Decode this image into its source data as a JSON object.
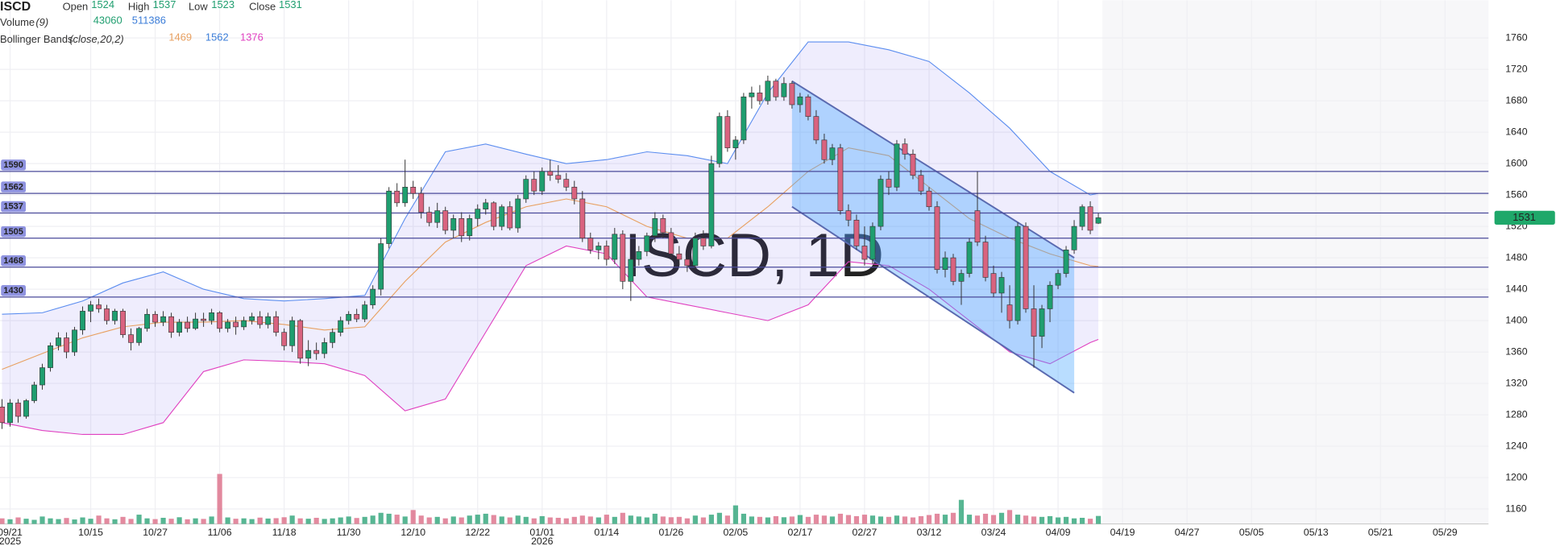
{
  "chart_data": {
    "type": "candlestick",
    "symbol": "ISCD",
    "watermark": "ISCD, 1D",
    "legend": {
      "ohlc": [
        {
          "label": "Open",
          "value": 1524
        },
        {
          "label": "High",
          "value": 1537
        },
        {
          "label": "Low",
          "value": 1523
        },
        {
          "label": "Close",
          "value": 1531
        }
      ],
      "volume": {
        "label": "Volume",
        "params": "(9)",
        "values": [
          43060,
          511386
        ]
      },
      "bollinger": {
        "label": "Bollinger Bands",
        "params": "(close,20,2)",
        "values": [
          1469,
          1562,
          1376
        ]
      }
    },
    "colors": {
      "up": "#1f9e6f",
      "down": "#d9637f",
      "upper": "#5b8def",
      "middle": "#e8a060",
      "lower": "#e040c0",
      "level": "#4a4a9a",
      "channel": "#5a6ab0"
    },
    "ohlc": [
      [
        1290,
        1300,
        1262,
        1270
      ],
      [
        1270,
        1300,
        1265,
        1295
      ],
      [
        1295,
        1300,
        1270,
        1278
      ],
      [
        1278,
        1300,
        1275,
        1298
      ],
      [
        1298,
        1322,
        1295,
        1318
      ],
      [
        1318,
        1345,
        1312,
        1340
      ],
      [
        1340,
        1372,
        1335,
        1368
      ],
      [
        1368,
        1385,
        1362,
        1378
      ],
      [
        1378,
        1385,
        1352,
        1360
      ],
      [
        1360,
        1392,
        1355,
        1388
      ],
      [
        1388,
        1418,
        1382,
        1412
      ],
      [
        1412,
        1425,
        1398,
        1420
      ],
      [
        1420,
        1428,
        1410,
        1415
      ],
      [
        1415,
        1420,
        1395,
        1400
      ],
      [
        1400,
        1415,
        1395,
        1412
      ],
      [
        1412,
        1415,
        1378,
        1382
      ],
      [
        1382,
        1390,
        1362,
        1372
      ],
      [
        1372,
        1392,
        1368,
        1390
      ],
      [
        1390,
        1415,
        1386,
        1408
      ],
      [
        1408,
        1412,
        1392,
        1398
      ],
      [
        1398,
        1412,
        1393,
        1405
      ],
      [
        1405,
        1410,
        1378,
        1385
      ],
      [
        1385,
        1402,
        1380,
        1398
      ],
      [
        1398,
        1405,
        1385,
        1390
      ],
      [
        1390,
        1410,
        1388,
        1402
      ],
      [
        1402,
        1410,
        1392,
        1400
      ],
      [
        1400,
        1415,
        1395,
        1410
      ],
      [
        1410,
        1412,
        1385,
        1390
      ],
      [
        1390,
        1402,
        1385,
        1398
      ],
      [
        1398,
        1405,
        1382,
        1392
      ],
      [
        1392,
        1405,
        1388,
        1400
      ],
      [
        1400,
        1410,
        1395,
        1405
      ],
      [
        1405,
        1412,
        1390,
        1395
      ],
      [
        1395,
        1410,
        1390,
        1405
      ],
      [
        1405,
        1412,
        1380,
        1385
      ],
      [
        1385,
        1390,
        1362,
        1368
      ],
      [
        1368,
        1405,
        1360,
        1400
      ],
      [
        1400,
        1402,
        1345,
        1352
      ],
      [
        1352,
        1375,
        1342,
        1362
      ],
      [
        1362,
        1372,
        1350,
        1358
      ],
      [
        1358,
        1378,
        1352,
        1372
      ],
      [
        1372,
        1390,
        1365,
        1385
      ],
      [
        1385,
        1405,
        1380,
        1400
      ],
      [
        1400,
        1412,
        1395,
        1408
      ],
      [
        1408,
        1415,
        1398,
        1402
      ],
      [
        1402,
        1425,
        1398,
        1420
      ],
      [
        1420,
        1445,
        1415,
        1440
      ],
      [
        1440,
        1505,
        1432,
        1498
      ],
      [
        1498,
        1570,
        1492,
        1565
      ],
      [
        1565,
        1575,
        1545,
        1550
      ],
      [
        1550,
        1605,
        1545,
        1570
      ],
      [
        1570,
        1578,
        1555,
        1562
      ],
      [
        1562,
        1570,
        1530,
        1538
      ],
      [
        1538,
        1545,
        1520,
        1525
      ],
      [
        1525,
        1550,
        1518,
        1540
      ],
      [
        1540,
        1545,
        1510,
        1515
      ],
      [
        1515,
        1535,
        1505,
        1530
      ],
      [
        1530,
        1538,
        1500,
        1508
      ],
      [
        1508,
        1535,
        1502,
        1530
      ],
      [
        1530,
        1548,
        1520,
        1542
      ],
      [
        1542,
        1555,
        1535,
        1550
      ],
      [
        1550,
        1552,
        1515,
        1520
      ],
      [
        1520,
        1548,
        1515,
        1545
      ],
      [
        1545,
        1552,
        1515,
        1518
      ],
      [
        1518,
        1560,
        1512,
        1555
      ],
      [
        1555,
        1585,
        1550,
        1580
      ],
      [
        1580,
        1590,
        1560,
        1565
      ],
      [
        1565,
        1595,
        1560,
        1590
      ],
      [
        1590,
        1605,
        1578,
        1585
      ],
      [
        1585,
        1598,
        1575,
        1580
      ],
      [
        1580,
        1588,
        1565,
        1570
      ],
      [
        1570,
        1578,
        1548,
        1555
      ],
      [
        1555,
        1565,
        1500,
        1505
      ],
      [
        1505,
        1512,
        1485,
        1490
      ],
      [
        1490,
        1500,
        1478,
        1495
      ],
      [
        1495,
        1502,
        1470,
        1478
      ],
      [
        1478,
        1518,
        1472,
        1510
      ],
      [
        1510,
        1515,
        1440,
        1450
      ],
      [
        1450,
        1482,
        1425,
        1478
      ],
      [
        1478,
        1495,
        1470,
        1488
      ],
      [
        1488,
        1512,
        1482,
        1508
      ],
      [
        1508,
        1538,
        1500,
        1530
      ],
      [
        1530,
        1535,
        1505,
        1512
      ],
      [
        1512,
        1518,
        1480,
        1485
      ],
      [
        1485,
        1495,
        1470,
        1478
      ],
      [
        1478,
        1485,
        1462,
        1470
      ],
      [
        1470,
        1512,
        1465,
        1505
      ],
      [
        1505,
        1515,
        1490,
        1495
      ],
      [
        1495,
        1610,
        1492,
        1600
      ],
      [
        1600,
        1665,
        1595,
        1660
      ],
      [
        1660,
        1668,
        1615,
        1620
      ],
      [
        1620,
        1635,
        1605,
        1630
      ],
      [
        1630,
        1690,
        1625,
        1685
      ],
      [
        1685,
        1698,
        1670,
        1690
      ],
      [
        1690,
        1700,
        1675,
        1680
      ],
      [
        1680,
        1712,
        1675,
        1705
      ],
      [
        1705,
        1708,
        1680,
        1685
      ],
      [
        1685,
        1710,
        1680,
        1702
      ],
      [
        1702,
        1705,
        1670,
        1675
      ],
      [
        1675,
        1690,
        1665,
        1685
      ],
      [
        1685,
        1688,
        1655,
        1660
      ],
      [
        1660,
        1668,
        1625,
        1630
      ],
      [
        1630,
        1638,
        1600,
        1605
      ],
      [
        1605,
        1625,
        1598,
        1620
      ],
      [
        1620,
        1625,
        1535,
        1540
      ],
      [
        1540,
        1548,
        1520,
        1528
      ],
      [
        1528,
        1535,
        1490,
        1495
      ],
      [
        1495,
        1520,
        1470,
        1478
      ],
      [
        1478,
        1525,
        1472,
        1520
      ],
      [
        1520,
        1585,
        1515,
        1580
      ],
      [
        1580,
        1590,
        1560,
        1570
      ],
      [
        1570,
        1630,
        1565,
        1625
      ],
      [
        1625,
        1632,
        1605,
        1612
      ],
      [
        1612,
        1618,
        1580,
        1585
      ],
      [
        1585,
        1592,
        1560,
        1565
      ],
      [
        1565,
        1570,
        1540,
        1545
      ],
      [
        1545,
        1552,
        1460,
        1465
      ],
      [
        1465,
        1488,
        1455,
        1480
      ],
      [
        1480,
        1485,
        1445,
        1450
      ],
      [
        1450,
        1465,
        1420,
        1460
      ],
      [
        1460,
        1505,
        1455,
        1500
      ],
      [
        1540,
        1590,
        1495,
        1500
      ],
      [
        1500,
        1508,
        1450,
        1455
      ],
      [
        1460,
        1470,
        1430,
        1435
      ],
      [
        1435,
        1462,
        1410,
        1455
      ],
      [
        1420,
        1445,
        1390,
        1400
      ],
      [
        1400,
        1525,
        1395,
        1520
      ],
      [
        1520,
        1525,
        1410,
        1415
      ],
      [
        1415,
        1445,
        1340,
        1380
      ],
      [
        1380,
        1420,
        1365,
        1415
      ],
      [
        1415,
        1450,
        1398,
        1445
      ],
      [
        1445,
        1465,
        1440,
        1460
      ],
      [
        1460,
        1495,
        1455,
        1490
      ],
      [
        1490,
        1528,
        1485,
        1520
      ],
      [
        1520,
        1548,
        1515,
        1545
      ],
      [
        1545,
        1552,
        1510,
        1515
      ],
      [
        1524,
        1537,
        1523,
        1531
      ]
    ],
    "volume": [
      30000,
      25000,
      35000,
      28000,
      22000,
      40000,
      30000,
      26000,
      32000,
      24000,
      35000,
      28000,
      45000,
      30000,
      25000,
      38000,
      27000,
      50000,
      30000,
      26000,
      33000,
      28000,
      36000,
      25000,
      30000,
      27000,
      40000,
      270000,
      35000,
      28000,
      30000,
      26000,
      34000,
      29000,
      31000,
      36000,
      45000,
      30000,
      28000,
      33000,
      27000,
      30000,
      35000,
      40000,
      32000,
      38000,
      45000,
      60000,
      55000,
      50000,
      40000,
      75000,
      45000,
      35000,
      38000,
      30000,
      40000,
      35000,
      45000,
      50000,
      55000,
      48000,
      40000,
      35000,
      45000,
      38000,
      30000,
      42000,
      35000,
      33000,
      30000,
      38000,
      45000,
      40000,
      35000,
      50000,
      38000,
      60000,
      45000,
      40000,
      35000,
      55000,
      40000,
      36000,
      38000,
      30000,
      45000,
      35000,
      50000,
      60000,
      45000,
      100000,
      55000,
      40000,
      38000,
      35000,
      42000,
      36000,
      40000,
      48000,
      38000,
      50000,
      45000,
      40000,
      55000,
      48000,
      42000,
      50000,
      45000,
      40000,
      38000,
      45000,
      40000,
      35000,
      42000,
      48000,
      55000,
      50000,
      60000,
      130000,
      50000,
      45000,
      55000,
      48000,
      60000,
      75000,
      50000,
      45000,
      40000,
      38000,
      42000,
      35000,
      38000,
      30000,
      33000,
      28000,
      43060
    ],
    "volume_ylim": [
      0,
      300000
    ],
    "bollinger": {
      "x": [
        0,
        5,
        10,
        15,
        20,
        25,
        30,
        35,
        40,
        45,
        50,
        55,
        60,
        65,
        70,
        75,
        80,
        85,
        90,
        95,
        100,
        105,
        110,
        115,
        120,
        125,
        130,
        135,
        136
      ],
      "upper": [
        1408,
        1410,
        1425,
        1448,
        1462,
        1440,
        1428,
        1425,
        1428,
        1432,
        1530,
        1615,
        1625,
        1612,
        1600,
        1605,
        1615,
        1610,
        1600,
        1690,
        1755,
        1755,
        1745,
        1730,
        1690,
        1645,
        1590,
        1560,
        1562
      ],
      "middle": [
        1338,
        1358,
        1378,
        1392,
        1398,
        1398,
        1400,
        1395,
        1388,
        1392,
        1450,
        1500,
        1525,
        1545,
        1555,
        1545,
        1520,
        1505,
        1505,
        1545,
        1590,
        1620,
        1610,
        1570,
        1530,
        1505,
        1485,
        1470,
        1469
      ],
      "lower": [
        1270,
        1260,
        1255,
        1255,
        1270,
        1335,
        1350,
        1348,
        1345,
        1330,
        1285,
        1300,
        1385,
        1470,
        1495,
        1485,
        1430,
        1420,
        1410,
        1400,
        1420,
        1475,
        1470,
        1440,
        1400,
        1360,
        1345,
        1372,
        1376
      ]
    },
    "levels": [
      1590,
      1562,
      1537,
      1505,
      1468,
      1430
    ],
    "channel": {
      "x": [
        98,
        133
      ],
      "upper": [
        1705,
        1480
      ],
      "lower": [
        1545,
        1308
      ]
    },
    "last_price": 1531,
    "ylim": [
      1141,
      1808
    ],
    "yticks": [
      1160,
      1200,
      1240,
      1280,
      1320,
      1360,
      1400,
      1440,
      1480,
      1520,
      1560,
      1600,
      1640,
      1680,
      1720,
      1760
    ],
    "xlim": [
      -0.25,
      184.4
    ],
    "xticks": [
      {
        "value": 1,
        "label": "09/21"
      },
      {
        "value": 11,
        "label": "10/15"
      },
      {
        "value": 19,
        "label": "10/27"
      },
      {
        "value": 27,
        "label": "11/06"
      },
      {
        "value": 35,
        "label": "11/18"
      },
      {
        "value": 43,
        "label": "11/30"
      },
      {
        "value": 51,
        "label": "12/10"
      },
      {
        "value": 59,
        "label": "12/22"
      },
      {
        "value": 67,
        "label": "01/01"
      },
      {
        "value": 75,
        "label": "01/14"
      },
      {
        "value": 83,
        "label": "01/26"
      },
      {
        "value": 91,
        "label": "02/05"
      },
      {
        "value": 99,
        "label": "02/17"
      },
      {
        "value": 107,
        "label": "02/27"
      },
      {
        "value": 115,
        "label": "03/12"
      },
      {
        "value": 123,
        "label": "03/24"
      },
      {
        "value": 131,
        "label": "04/09"
      },
      {
        "value": 139,
        "label": "04/19"
      },
      {
        "value": 147,
        "label": "04/27"
      },
      {
        "value": 155,
        "label": "05/05"
      },
      {
        "value": 163,
        "label": "05/13"
      },
      {
        "value": 171,
        "label": "05/21"
      },
      {
        "value": 179,
        "label": "05/29"
      }
    ],
    "year_labels": [
      {
        "value": 1,
        "label": "2025"
      },
      {
        "value": 67,
        "label": "2026"
      }
    ]
  }
}
